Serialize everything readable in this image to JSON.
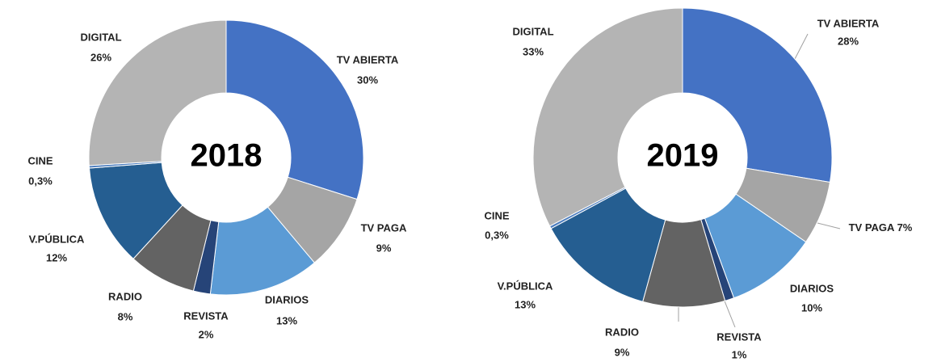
{
  "chart_data": [
    {
      "type": "donut",
      "title": "2018",
      "categories": [
        "TV ABIERTA",
        "TV PAGA",
        "DIARIOS",
        "REVISTA",
        "RADIO",
        "V.PÚBLICA",
        "CINE",
        "DIGITAL"
      ],
      "values": [
        30,
        9,
        13,
        2,
        8,
        12,
        0.3,
        26
      ],
      "value_labels": [
        "30%",
        "9%",
        "13%",
        "2%",
        "8%",
        "12%",
        "0,3%",
        "26%"
      ],
      "colors": [
        "#4472c4",
        "#a5a5a5",
        "#5b9bd5",
        "#264478",
        "#636363",
        "#255e91",
        "#4d7ebf",
        "#b4b4b4"
      ]
    },
    {
      "type": "donut",
      "title": "2019",
      "categories": [
        "TV ABIERTA",
        "TV PAGA",
        "DIARIOS",
        "REVISTA",
        "RADIO",
        "V.PÚBLICA",
        "CINE",
        "DIGITAL"
      ],
      "values": [
        28,
        7,
        10,
        1,
        9,
        13,
        0.3,
        33
      ],
      "value_labels": [
        "28%",
        "7%",
        "10%",
        "1%",
        "9%",
        "13%",
        "0,3%",
        "33%"
      ],
      "colors": [
        "#4472c4",
        "#a5a5a5",
        "#5b9bd5",
        "#264478",
        "#636363",
        "#255e91",
        "#4d7ebf",
        "#b4b4b4"
      ]
    }
  ]
}
